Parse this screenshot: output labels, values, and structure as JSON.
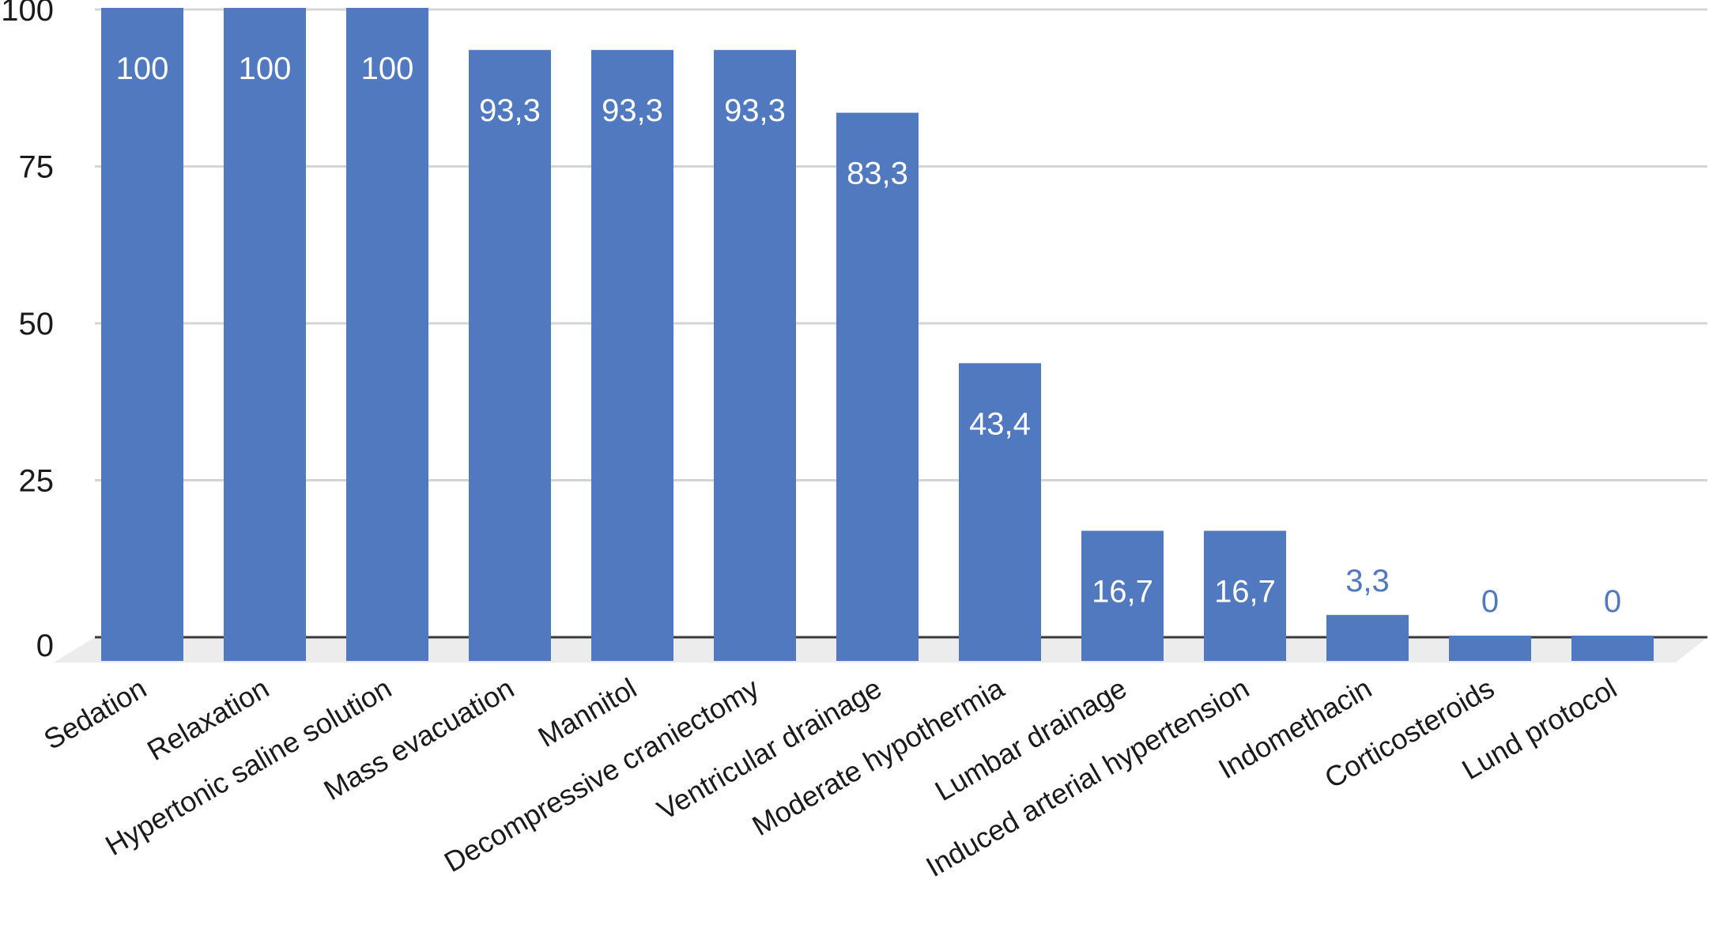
{
  "chart_data": {
    "type": "bar",
    "title": "",
    "xlabel": "",
    "ylabel": "",
    "ylim": [
      0,
      100
    ],
    "yticks": [
      0,
      25,
      50,
      75,
      100
    ],
    "grid": true,
    "categories": [
      "Sedation",
      "Relaxation",
      "Hypertonic saline solution",
      "Mass evacuation",
      "Mannitol",
      "Decompressive craniectomy",
      "Ventricular drainage",
      "Moderate hypothermia",
      "Lumbar drainage",
      "Induced arterial hypertension",
      "Indomethacin",
      "Corticosteroids",
      "Lund protocol"
    ],
    "values": [
      100,
      100,
      100,
      93.3,
      93.3,
      93.3,
      83.3,
      43.4,
      16.7,
      16.7,
      3.3,
      0,
      0
    ],
    "data_labels": [
      "100",
      "100",
      "100",
      "93,3",
      "93,3",
      "93,3",
      "83,3",
      "43,4",
      "16,7",
      "16,7",
      "3,3",
      "0",
      "0"
    ],
    "colors": {
      "bar": "#5079bf",
      "label_inside": "#ffffff",
      "label_outside": "#5079bf",
      "grid": "#d4d4d4",
      "floor": "#ececec",
      "baseline": "#3a3a3a"
    }
  }
}
